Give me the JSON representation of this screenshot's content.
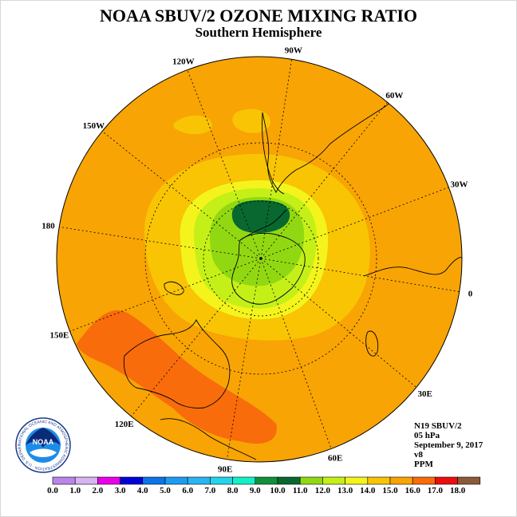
{
  "title": "NOAA SBUV/2 OZONE MIXING RATIO",
  "subtitle": "Southern Hemisphere",
  "longitude_labels": [
    {
      "text": "90W",
      "lon": -90
    },
    {
      "text": "60W",
      "lon": -60
    },
    {
      "text": "30W",
      "lon": -30
    },
    {
      "text": "0",
      "lon": 0
    },
    {
      "text": "30E",
      "lon": 30
    },
    {
      "text": "60E",
      "lon": 60
    },
    {
      "text": "90E",
      "lon": 90
    },
    {
      "text": "120E",
      "lon": 120
    },
    {
      "text": "150E",
      "lon": 150
    },
    {
      "text": "180",
      "lon": 180
    },
    {
      "text": "150W",
      "lon": -150
    },
    {
      "text": "120W",
      "lon": -120
    }
  ],
  "info": {
    "satellite": "N19 SBUV/2",
    "level": "05 hPa",
    "date": "September 9, 2017",
    "version": "v8",
    "units": "PPM"
  },
  "logo": {
    "text": "NOAA",
    "ring_text": "NATIONAL OCEANIC AND ATMOSPHERIC ADMINISTRATION · U.S. DEPARTMENT OF COMMERCE ·"
  },
  "colorbar": {
    "tick_labels": [
      "0.0",
      "1.0",
      "2.0",
      "3.0",
      "4.0",
      "5.0",
      "6.0",
      "7.0",
      "8.0",
      "9.0",
      "10.0",
      "11.0",
      "12.0",
      "13.0",
      "14.0",
      "15.0",
      "16.0",
      "17.0",
      "18.0"
    ],
    "colors": [
      "#b986e8",
      "#d8b4f0",
      "#e900e9",
      "#0000d8",
      "#0c74e8",
      "#1c9cf0",
      "#2ab4f0",
      "#23d4ea",
      "#14f0c8",
      "#10903c",
      "#086830",
      "#92d812",
      "#c4f018",
      "#f4f41c",
      "#f8c404",
      "#f8a404",
      "#f86c0c",
      "#ec0e0e",
      "#8a5a3a"
    ]
  },
  "field_colors": {
    "background": "#f8a404",
    "yellow": "#f8c404",
    "light_yellow": "#f4f41c",
    "yellow_green": "#c4f018",
    "green": "#92d812",
    "dark_green": "#086830",
    "orange_red": "#f86c0c"
  }
}
